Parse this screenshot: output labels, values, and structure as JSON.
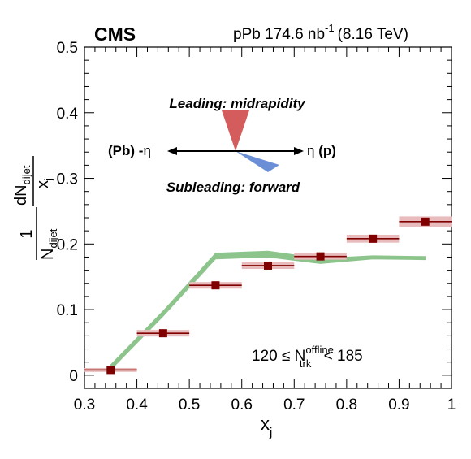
{
  "header": {
    "experiment": "CMS",
    "dataset": "pPb 174.6 nb",
    "dataset_sup": "-1",
    "energy": "(8.16 TeV)"
  },
  "selection": {
    "prefix": "120 ≤ N",
    "sup": "offline",
    "sub": "trk",
    "suffix": " < 185"
  },
  "schematic": {
    "leading_label": "Leading: midrapidity",
    "subleading_label": "Subleading: forward",
    "left_label_a": "(Pb) -",
    "left_label_eta": "η",
    "right_label_eta": "η",
    "right_label_b": " (p)",
    "leading_color": "#d45c5c",
    "subleading_color": "#6b8fd6"
  },
  "axis_labels": {
    "x_main": "x",
    "x_sub": "j",
    "y_one": "1",
    "y_N": "N",
    "y_N_sub": "dijet",
    "y_dN": "dN",
    "y_dN_sub": "dijet",
    "y_xj": "x",
    "y_xj_sub": "j"
  },
  "chart_data": {
    "type": "scatter",
    "xlim": [
      0.3,
      1.0
    ],
    "ylim": [
      -0.02,
      0.5
    ],
    "x_ticks": [
      "0.3",
      "0.4",
      "0.5",
      "0.6",
      "0.7",
      "0.8",
      "0.9",
      "1"
    ],
    "y_ticks": [
      "0",
      "0.1",
      "0.2",
      "0.3",
      "0.4",
      "0.5"
    ],
    "series": [
      {
        "style": "markers with horizontal bin bars and shaded systematic boxes",
        "color": "#800000",
        "box_color": "#e8bcbc",
        "x": [
          0.35,
          0.45,
          0.55,
          0.65,
          0.75,
          0.85,
          0.95
        ],
        "xerr": 0.05,
        "y": [
          0.008,
          0.064,
          0.137,
          0.167,
          0.181,
          0.208,
          0.234
        ],
        "syst": [
          0.003,
          0.005,
          0.005,
          0.005,
          0.005,
          0.006,
          0.008
        ]
      },
      {
        "style": "band",
        "color": "#8cc48c",
        "x": [
          0.35,
          0.45,
          0.55,
          0.65,
          0.75,
          0.85,
          0.95
        ],
        "y_low": [
          0.008,
          0.09,
          0.177,
          0.18,
          0.17,
          0.177,
          0.176
        ],
        "y_high": [
          0.016,
          0.098,
          0.186,
          0.189,
          0.178,
          0.182,
          0.181
        ]
      }
    ]
  }
}
